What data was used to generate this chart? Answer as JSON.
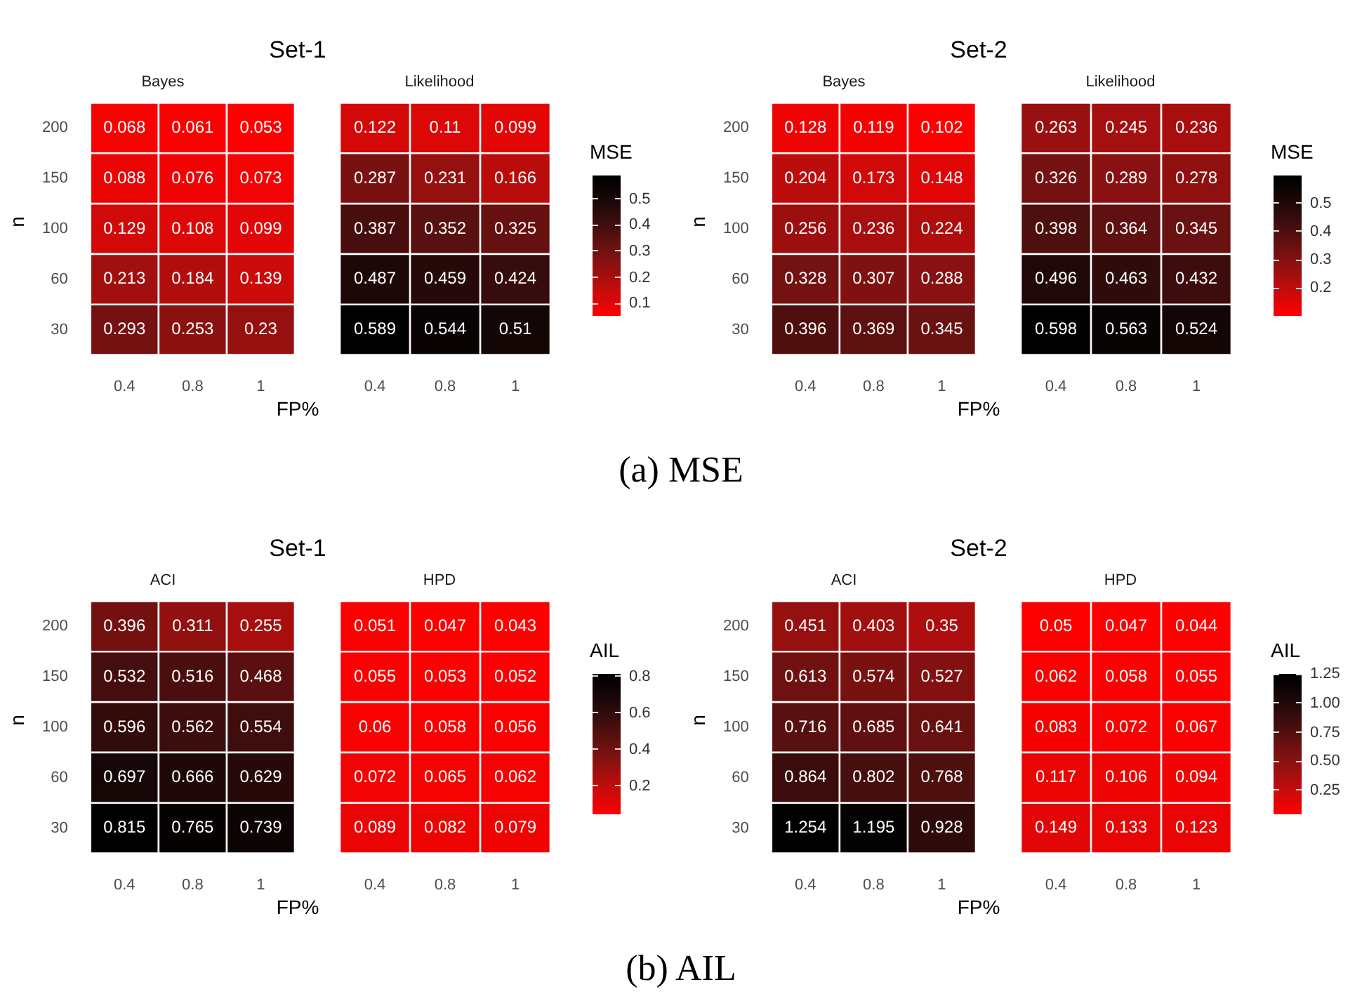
{
  "chart_data": [
    {
      "type": "heatmap",
      "title": "Set-1",
      "subtitle": "Bayes",
      "xlabel": "FP%",
      "ylabel": "n",
      "categories": [
        "0.4",
        "0.8",
        "1"
      ],
      "y_categories": [
        "200",
        "150",
        "100",
        "60",
        "30"
      ],
      "cells": [
        [
          0.068,
          0.061,
          0.053
        ],
        [
          0.088,
          0.076,
          0.073
        ],
        [
          0.129,
          0.108,
          0.099
        ],
        [
          0.213,
          0.184,
          0.139
        ],
        [
          0.293,
          0.253,
          0.23
        ]
      ],
      "data_labels": true,
      "annotations": [
        "(a) MSE"
      ]
    },
    {
      "type": "heatmap",
      "subtitle": "Likelihood",
      "categories": [
        "0.4",
        "0.8",
        "1"
      ],
      "y_categories": [
        "200",
        "150",
        "100",
        "60",
        "30"
      ],
      "cells": [
        [
          0.122,
          0.11,
          0.099
        ],
        [
          0.287,
          0.231,
          0.166
        ],
        [
          0.387,
          0.352,
          0.325
        ],
        [
          0.487,
          0.459,
          0.424
        ],
        [
          0.589,
          0.544,
          0.51
        ]
      ],
      "clim": [
        0.053,
        0.589
      ],
      "cticks": [
        0.1,
        0.2,
        0.3,
        0.4,
        0.5
      ],
      "clabel": "MSE",
      "data_labels": true,
      "tick_labels": "x"
    },
    {
      "type": "heatmap",
      "title": "Set-2",
      "subtitle": "Bayes",
      "xlabel": "FP%",
      "ylabel": "n",
      "categories": [
        "0.4",
        "0.8",
        "1"
      ],
      "y_categories": [
        "200",
        "150",
        "100",
        "60",
        "30"
      ],
      "cells": [
        [
          0.128,
          0.119,
          0.102
        ],
        [
          0.204,
          0.173,
          0.148
        ],
        [
          0.256,
          0.236,
          0.224
        ],
        [
          0.328,
          0.307,
          0.288
        ],
        [
          0.396,
          0.369,
          0.345
        ]
      ],
      "data_labels": true
    },
    {
      "type": "heatmap",
      "subtitle": "Likelihood",
      "categories": [
        "0.4",
        "0.8",
        "1"
      ],
      "y_categories": [
        "200",
        "150",
        "100",
        "60",
        "30"
      ],
      "cells": [
        [
          0.263,
          0.245,
          0.236
        ],
        [
          0.326,
          0.289,
          0.278
        ],
        [
          0.398,
          0.364,
          0.345
        ],
        [
          0.496,
          0.463,
          0.432
        ],
        [
          0.598,
          0.563,
          0.524
        ]
      ],
      "clim": [
        0.102,
        0.598
      ],
      "cticks": [
        0.2,
        0.3,
        0.4,
        0.5
      ],
      "clabel": "MSE",
      "data_labels": true,
      "tick_labels": "x"
    },
    {
      "type": "heatmap",
      "title": "Set-1",
      "subtitle": "ACI",
      "xlabel": "FP%",
      "ylabel": "n",
      "categories": [
        "0.4",
        "0.8",
        "1"
      ],
      "y_categories": [
        "200",
        "150",
        "100",
        "60",
        "30"
      ],
      "cells": [
        [
          0.396,
          0.311,
          0.255
        ],
        [
          0.532,
          0.516,
          0.468
        ],
        [
          0.596,
          0.562,
          0.554
        ],
        [
          0.697,
          0.666,
          0.629
        ],
        [
          0.815,
          0.765,
          0.739
        ]
      ],
      "data_labels": true,
      "annotations": [
        "(b) AIL"
      ]
    },
    {
      "type": "heatmap",
      "subtitle": "HPD",
      "categories": [
        "0.4",
        "0.8",
        "1"
      ],
      "y_categories": [
        "200",
        "150",
        "100",
        "60",
        "30"
      ],
      "cells": [
        [
          0.051,
          0.047,
          0.043
        ],
        [
          0.055,
          0.053,
          0.052
        ],
        [
          0.06,
          0.058,
          0.056
        ],
        [
          0.072,
          0.065,
          0.062
        ],
        [
          0.089,
          0.082,
          0.079
        ]
      ],
      "clim": [
        0.043,
        0.815
      ],
      "cticks": [
        0.2,
        0.4,
        0.6,
        0.8
      ],
      "clabel": "AIL",
      "data_labels": true,
      "tick_labels": "x"
    },
    {
      "type": "heatmap",
      "title": "Set-2",
      "subtitle": "ACI",
      "xlabel": "FP%",
      "ylabel": "n",
      "categories": [
        "0.4",
        "0.8",
        "1"
      ],
      "y_categories": [
        "200",
        "150",
        "100",
        "60",
        "30"
      ],
      "cells": [
        [
          0.451,
          0.403,
          0.35
        ],
        [
          0.613,
          0.574,
          0.527
        ],
        [
          0.716,
          0.685,
          0.641
        ],
        [
          0.864,
          0.802,
          0.768
        ],
        [
          1.254,
          1.195,
          0.928
        ]
      ],
      "data_labels": true
    },
    {
      "type": "heatmap",
      "subtitle": "HPD",
      "categories": [
        "0.4",
        "0.8",
        "1"
      ],
      "y_categories": [
        "200",
        "150",
        "100",
        "60",
        "30"
      ],
      "cells": [
        [
          0.05,
          0.047,
          0.044
        ],
        [
          0.062,
          0.058,
          0.055
        ],
        [
          0.083,
          0.072,
          0.067
        ],
        [
          0.117,
          0.106,
          0.094
        ],
        [
          0.149,
          0.133,
          0.123
        ]
      ],
      "clim": [
        0.044,
        1.254
      ],
      "cticks": [
        {
          "value": 0.25,
          "label": "0.25"
        },
        {
          "value": 0.5,
          "label": "0.50"
        },
        {
          "value": 0.75,
          "label": "0.75"
        },
        {
          "value": 1,
          "label": "1.00"
        },
        {
          "value": 1.25,
          "label": "1.25"
        }
      ],
      "clabel": "AIL",
      "data_labels": true,
      "tick_labels": "x"
    }
  ]
}
